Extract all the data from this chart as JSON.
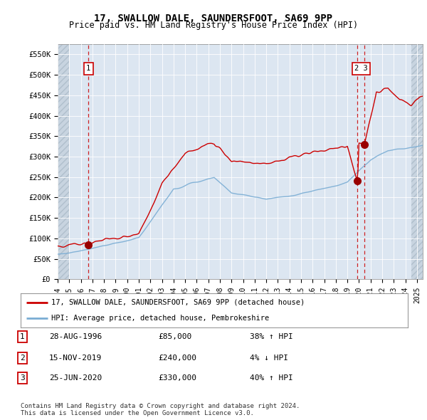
{
  "title": "17, SWALLOW DALE, SAUNDERSFOOT, SA69 9PP",
  "subtitle": "Price paid vs. HM Land Registry's House Price Index (HPI)",
  "ylabel_ticks": [
    "£0",
    "£50K",
    "£100K",
    "£150K",
    "£200K",
    "£250K",
    "£300K",
    "£350K",
    "£400K",
    "£450K",
    "£500K",
    "£550K"
  ],
  "ytick_values": [
    0,
    50000,
    100000,
    150000,
    200000,
    250000,
    300000,
    350000,
    400000,
    450000,
    500000,
    550000
  ],
  "ylim": [
    0,
    575000
  ],
  "xlim_start": 1994.0,
  "xlim_end": 2025.5,
  "sale_points": [
    {
      "date": 1996.66,
      "price": 85000,
      "label": "1"
    },
    {
      "date": 2019.88,
      "price": 240000,
      "label": "2"
    },
    {
      "date": 2020.48,
      "price": 330000,
      "label": "3"
    }
  ],
  "vline_dates": [
    1996.66,
    2019.88,
    2020.48
  ],
  "hatch_left_end": 1995.0,
  "hatch_right_start": 2024.5,
  "legend_line1": "17, SWALLOW DALE, SAUNDERSFOOT, SA69 9PP (detached house)",
  "legend_line2": "HPI: Average price, detached house, Pembrokeshire",
  "table_rows": [
    {
      "num": "1",
      "date": "28-AUG-1996",
      "price": "£85,000",
      "change": "38% ↑ HPI"
    },
    {
      "num": "2",
      "date": "15-NOV-2019",
      "price": "£240,000",
      "change": "4% ↓ HPI"
    },
    {
      "num": "3",
      "date": "25-JUN-2020",
      "price": "£330,000",
      "change": "40% ↑ HPI"
    }
  ],
  "footer": "Contains HM Land Registry data © Crown copyright and database right 2024.\nThis data is licensed under the Open Government Licence v3.0.",
  "red_color": "#cc0000",
  "dark_red_color": "#990000",
  "blue_color": "#7aadd4",
  "background_color": "#ffffff",
  "plot_bg_color": "#dce6f1",
  "hatch_color": "#c8d4e0",
  "grid_color": "#ffffff"
}
